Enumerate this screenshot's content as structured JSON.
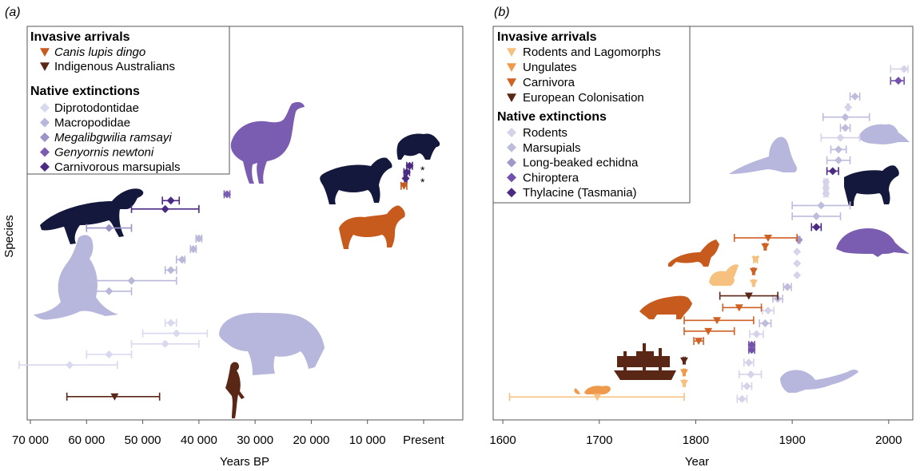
{
  "y_axis_label": "Species",
  "colors": {
    "dingo": "#c75b1e",
    "indigenous": "#5a2616",
    "diprotodontidae": "#d8d8ee",
    "macropodidae": "#b9b8db",
    "megalibgwilia": "#9c93c8",
    "genyornis": "#7a5cb1",
    "carnivorous": "#4b2a84",
    "rodents_lagomorphs": "#f6c07f",
    "ungulates": "#ee9a4a",
    "carnivora": "#cf6124",
    "european": "#5a2616",
    "rodents": "#d4d3ea",
    "marsupials": "#bdbcdc",
    "echidna": "#9f98c9",
    "chiroptera": "#7252ad",
    "thylacine": "#4b2a84",
    "silhouette_dark": "#15183d",
    "silhouette_lilac": "#b7b6dc",
    "silhouette_purple": "#7a5cb1",
    "silhouette_orange": "#c75b1e"
  },
  "chart_data": [
    {
      "type": "scatter",
      "panel_label": "(a)",
      "xlabel": "Years BP",
      "ylabel": "Species",
      "xlim": [
        70000,
        0
      ],
      "x_reversed": true,
      "xtick_labels": [
        "70 000",
        "60 000",
        "50 000",
        "40 000",
        "30 000",
        "20 000",
        "10 000",
        "Present"
      ],
      "xtick_values": [
        70000,
        60000,
        50000,
        40000,
        30000,
        20000,
        10000,
        0
      ],
      "legend": {
        "heading_1": "Invasive arrivals",
        "invasive": [
          {
            "label": "Canis lupis dingo",
            "italic": true,
            "color_key": "dingo"
          },
          {
            "label": "Indigenous Australians",
            "italic": false,
            "color_key": "indigenous"
          }
        ],
        "heading_2": "Native extinctions",
        "native": [
          {
            "label": "Diprotodontidae",
            "italic": false,
            "color_key": "diprotodontidae"
          },
          {
            "label": "Macropodidae",
            "italic": false,
            "color_key": "macropodidae"
          },
          {
            "label": "Megalibgwilia ramsayi",
            "italic": true,
            "color_key": "megalibgwilia"
          },
          {
            "label": "Genyornis newtoni",
            "italic": true,
            "color_key": "genyornis"
          },
          {
            "label": "Carnivorous marsupials",
            "italic": false,
            "color_key": "carnivorous"
          }
        ]
      },
      "annotations": [
        "*",
        "*"
      ],
      "points": [
        {
          "x": 55000,
          "lo": 47000,
          "hi": 63500,
          "row": 1,
          "marker": "triangle",
          "color_key": "indigenous"
        },
        {
          "x": 63000,
          "lo": 54500,
          "hi": 72000,
          "row": 4,
          "marker": "diamond",
          "color_key": "diprotodontidae"
        },
        {
          "x": 56000,
          "lo": 52000,
          "hi": 60000,
          "row": 5,
          "marker": "diamond",
          "color_key": "diprotodontidae"
        },
        {
          "x": 46000,
          "lo": 40000,
          "hi": 52000,
          "row": 6,
          "marker": "diamond",
          "color_key": "diprotodontidae"
        },
        {
          "x": 44000,
          "lo": 38500,
          "hi": 50000,
          "row": 7,
          "marker": "diamond",
          "color_key": "diprotodontidae"
        },
        {
          "x": 45000,
          "lo": 44000,
          "hi": 46000,
          "row": 8,
          "marker": "diamond",
          "color_key": "diprotodontidae"
        },
        {
          "x": 56000,
          "lo": 52000,
          "hi": 60000,
          "row": 11,
          "marker": "diamond",
          "color_key": "macropodidae"
        },
        {
          "x": 52000,
          "lo": 44000,
          "hi": 60000,
          "row": 12,
          "marker": "diamond",
          "color_key": "macropodidae"
        },
        {
          "x": 45000,
          "lo": 44000,
          "hi": 46000,
          "row": 13,
          "marker": "diamond",
          "color_key": "macropodidae"
        },
        {
          "x": 43000,
          "lo": 42500,
          "hi": 44000,
          "row": 14,
          "marker": "diamond",
          "color_key": "macropodidae"
        },
        {
          "x": 41000,
          "lo": 40500,
          "hi": 41500,
          "row": 15,
          "marker": "diamond",
          "color_key": "macropodidae"
        },
        {
          "x": 40000,
          "lo": 39500,
          "hi": 40500,
          "row": 16,
          "marker": "diamond",
          "color_key": "macropodidae"
        },
        {
          "x": 56000,
          "lo": 52000,
          "hi": 60000,
          "row": 17,
          "marker": "diamond",
          "color_key": "megalibgwilia"
        },
        {
          "x": 46000,
          "lo": 40000,
          "hi": 52000,
          "row": 18.8,
          "marker": "diamond",
          "color_key": "carnivorous"
        },
        {
          "x": 45000,
          "lo": 43500,
          "hi": 46500,
          "row": 19.6,
          "marker": "diamond",
          "color_key": "carnivorous"
        },
        {
          "x": 35000,
          "lo": 34500,
          "hi": 35500,
          "row": 20.2,
          "marker": "diamond",
          "color_key": "genyornis"
        },
        {
          "x": 3500,
          "lo": 3000,
          "hi": 4000,
          "row": 21,
          "marker": "triangle",
          "color_key": "dingo"
        },
        {
          "x": 3200,
          "lo": 3000,
          "hi": 3400,
          "row": 21.7,
          "marker": "diamond",
          "color_key": "carnivorous"
        },
        {
          "x": 3000,
          "lo": 2500,
          "hi": 3500,
          "row": 22.3,
          "marker": "diamond",
          "color_key": "carnivorous"
        },
        {
          "x": 2500,
          "lo": 2000,
          "hi": 3000,
          "row": 22.9,
          "marker": "diamond",
          "color_key": "carnivorous"
        }
      ]
    },
    {
      "type": "scatter",
      "panel_label": "(b)",
      "xlabel": "Year",
      "ylabel": "",
      "xlim": [
        1590,
        2025
      ],
      "xtick_labels": [
        "1600",
        "1700",
        "1800",
        "1900",
        "2000"
      ],
      "xtick_values": [
        1600,
        1700,
        1800,
        1900,
        2000
      ],
      "legend": {
        "heading_1": "Invasive arrivals",
        "invasive": [
          {
            "label": "Rodents and Lagomorphs",
            "color_key": "rodents_lagomorphs"
          },
          {
            "label": "Ungulates",
            "color_key": "ungulates"
          },
          {
            "label": "Carnivora",
            "color_key": "carnivora"
          },
          {
            "label": "European Colonisation",
            "color_key": "european"
          }
        ],
        "heading_2": "Native extinctions",
        "native": [
          {
            "label": "Rodents",
            "color_key": "rodents"
          },
          {
            "label": "Marsupials",
            "color_key": "marsupials"
          },
          {
            "label": "Long-beaked echidna",
            "color_key": "echidna"
          },
          {
            "label": "Chiroptera",
            "color_key": "chiroptera"
          },
          {
            "label": "Thylacine (Tasmania)",
            "color_key": "thylacine"
          }
        ]
      },
      "points": [
        {
          "x": 1848,
          "lo": 1843,
          "hi": 1853,
          "row": 1,
          "marker": "diamond",
          "color_key": "rodents"
        },
        {
          "x": 1698,
          "lo": 1607,
          "hi": 1788,
          "row": 1.2,
          "marker": "triangle",
          "color_key": "rodents_lagomorphs"
        },
        {
          "x": 1853,
          "lo": 1848,
          "hi": 1858,
          "row": 2.3,
          "marker": "diamond",
          "color_key": "rodents"
        },
        {
          "x": 1788,
          "lo": 1787,
          "hi": 1789,
          "row": 2.6,
          "marker": "triangle",
          "color_key": "rodents_lagomorphs"
        },
        {
          "x": 1857,
          "lo": 1845,
          "hi": 1868,
          "row": 3.5,
          "marker": "diamond",
          "color_key": "rodents"
        },
        {
          "x": 1788,
          "lo": 1787,
          "hi": 1789,
          "row": 3.7,
          "marker": "triangle",
          "color_key": "ungulates"
        },
        {
          "x": 1855,
          "lo": 1850,
          "hi": 1860,
          "row": 4.7,
          "marker": "diamond",
          "color_key": "rodents"
        },
        {
          "x": 1788,
          "lo": 1787,
          "hi": 1789,
          "row": 4.9,
          "marker": "triangle",
          "color_key": "european"
        },
        {
          "x": 1858,
          "lo": 1855,
          "hi": 1861,
          "row": 6.0,
          "marker": "diamond",
          "color_key": "chiroptera"
        },
        {
          "x": 1858,
          "lo": 1855,
          "hi": 1861,
          "row": 6.5,
          "marker": "diamond",
          "color_key": "chiroptera"
        },
        {
          "x": 1803,
          "lo": 1798,
          "hi": 1808,
          "row": 6.9,
          "marker": "triangle",
          "color_key": "carnivora"
        },
        {
          "x": 1863,
          "lo": 1856,
          "hi": 1870,
          "row": 7.6,
          "marker": "diamond",
          "color_key": "rodents"
        },
        {
          "x": 1813,
          "lo": 1788,
          "hi": 1840,
          "row": 7.9,
          "marker": "triangle",
          "color_key": "carnivora"
        },
        {
          "x": 1872,
          "lo": 1866,
          "hi": 1878,
          "row": 8.7,
          "marker": "diamond",
          "color_key": "marsupials"
        },
        {
          "x": 1822,
          "lo": 1788,
          "hi": 1860,
          "row": 9.0,
          "marker": "triangle",
          "color_key": "carnivora"
        },
        {
          "x": 1875,
          "lo": 1869,
          "hi": 1881,
          "row": 10.0,
          "marker": "diamond",
          "color_key": "rodents"
        },
        {
          "x": 1845,
          "lo": 1828,
          "hi": 1868,
          "row": 10.3,
          "marker": "triangle",
          "color_key": "carnivora"
        },
        {
          "x": 1885,
          "lo": 1880,
          "hi": 1890,
          "row": 11.2,
          "marker": "diamond",
          "color_key": "marsupials"
        },
        {
          "x": 1855,
          "lo": 1825,
          "hi": 1885,
          "row": 11.5,
          "marker": "triangle",
          "color_key": "european"
        },
        {
          "x": 1895,
          "lo": 1891,
          "hi": 1899,
          "row": 12.4,
          "marker": "diamond",
          "color_key": "marsupials"
        },
        {
          "x": 1860,
          "lo": 1859,
          "hi": 1861,
          "row": 12.8,
          "marker": "triangle",
          "color_key": "rodents_lagomorphs"
        },
        {
          "x": 1905,
          "lo": 1905,
          "hi": 1905,
          "row": 13.6,
          "marker": "diamond",
          "color_key": "rodents"
        },
        {
          "x": 1860,
          "lo": 1859,
          "hi": 1861,
          "row": 14.0,
          "marker": "triangle",
          "color_key": "carnivora"
        },
        {
          "x": 1905,
          "lo": 1905,
          "hi": 1905,
          "row": 14.8,
          "marker": "diamond",
          "color_key": "rodents"
        },
        {
          "x": 1862,
          "lo": 1860,
          "hi": 1864,
          "row": 15.2,
          "marker": "triangle",
          "color_key": "rodents_lagomorphs"
        },
        {
          "x": 1905,
          "lo": 1905,
          "hi": 1905,
          "row": 16.0,
          "marker": "diamond",
          "color_key": "rodents"
        },
        {
          "x": 1872,
          "lo": 1871,
          "hi": 1873,
          "row": 16.5,
          "marker": "triangle",
          "color_key": "carnivora"
        },
        {
          "x": 1907,
          "lo": 1906,
          "hi": 1908,
          "row": 17.2,
          "marker": "diamond",
          "color_key": "echidna"
        },
        {
          "x": 1875,
          "lo": 1840,
          "hi": 1905,
          "row": 17.4,
          "marker": "triangle",
          "color_key": "carnivora"
        },
        {
          "x": 1925,
          "lo": 1920,
          "hi": 1930,
          "row": 18.5,
          "marker": "diamond",
          "color_key": "thylacine"
        },
        {
          "x": 1925,
          "lo": 1900,
          "hi": 1950,
          "row": 19.6,
          "marker": "diamond",
          "color_key": "marsupials"
        },
        {
          "x": 1930,
          "lo": 1900,
          "hi": 1960,
          "row": 20.7,
          "marker": "diamond",
          "color_key": "marsupials"
        },
        {
          "x": 1935,
          "lo": 1933,
          "hi": 1937,
          "row": 21.9,
          "marker": "diamond",
          "color_key": "rodents"
        },
        {
          "x": 1935,
          "lo": 1933,
          "hi": 1937,
          "row": 22.5,
          "marker": "diamond",
          "color_key": "rodents"
        },
        {
          "x": 1935,
          "lo": 1933,
          "hi": 1937,
          "row": 23.1,
          "marker": "diamond",
          "color_key": "rodents"
        },
        {
          "x": 1942,
          "lo": 1936,
          "hi": 1948,
          "row": 24.2,
          "marker": "diamond",
          "color_key": "thylacine"
        },
        {
          "x": 1948,
          "lo": 1936,
          "hi": 1960,
          "row": 25.3,
          "marker": "diamond",
          "color_key": "marsupials"
        },
        {
          "x": 1948,
          "lo": 1940,
          "hi": 1956,
          "row": 26.4,
          "marker": "diamond",
          "color_key": "marsupials"
        },
        {
          "x": 1950,
          "lo": 1930,
          "hi": 1970,
          "row": 27.6,
          "marker": "diamond",
          "color_key": "rodents"
        },
        {
          "x": 1955,
          "lo": 1950,
          "hi": 1960,
          "row": 28.6,
          "marker": "diamond",
          "color_key": "marsupials"
        },
        {
          "x": 1955,
          "lo": 1932,
          "hi": 1980,
          "row": 29.7,
          "marker": "diamond",
          "color_key": "marsupials"
        },
        {
          "x": 1958,
          "lo": 1957,
          "hi": 1959,
          "row": 30.7,
          "marker": "diamond",
          "color_key": "rodents"
        },
        {
          "x": 1965,
          "lo": 1960,
          "hi": 1970,
          "row": 31.8,
          "marker": "diamond",
          "color_key": "marsupials"
        },
        {
          "x": 2010,
          "lo": 2002,
          "hi": 2016,
          "row": 33.4,
          "marker": "diamond",
          "color_key": "chiroptera"
        },
        {
          "x": 2016,
          "lo": 2002,
          "hi": 2020,
          "row": 34.6,
          "marker": "diamond",
          "color_key": "rodents"
        }
      ]
    }
  ]
}
